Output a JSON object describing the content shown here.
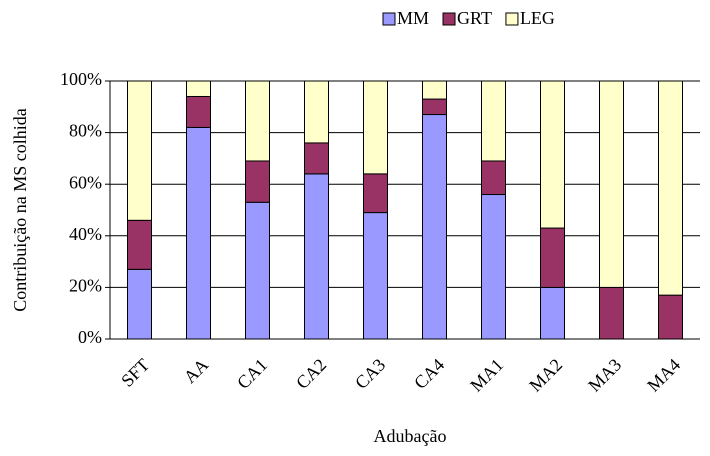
{
  "chart_data": {
    "type": "stacked_bar",
    "xlabel": "Adubação",
    "ylabel": "Contribuição na MS colhida",
    "categories": [
      "SFT",
      "AA",
      "CA1",
      "CA2",
      "CA3",
      "CA4",
      "MA1",
      "MA2",
      "MA3",
      "MA4"
    ],
    "series": [
      {
        "name": "MM",
        "color": "#9999ff",
        "values": [
          27,
          82,
          53,
          64,
          49,
          87,
          56,
          20,
          0,
          0
        ]
      },
      {
        "name": "GRT",
        "color": "#993366",
        "values": [
          19,
          12,
          16,
          12,
          15,
          6,
          13,
          23,
          20,
          17
        ]
      },
      {
        "name": "LEG",
        "color": "#ffffcc",
        "values": [
          54,
          6,
          31,
          24,
          36,
          7,
          31,
          57,
          80,
          83
        ]
      }
    ],
    "ylim": [
      0,
      100
    ],
    "yticks": [
      {
        "value": 0,
        "label": "0%"
      },
      {
        "value": 20,
        "label": "20%"
      },
      {
        "value": 40,
        "label": "40%"
      },
      {
        "value": 60,
        "label": "60%"
      },
      {
        "value": 80,
        "label": "80%"
      },
      {
        "value": 100,
        "label": "100%"
      }
    ],
    "grid": true,
    "legend": "top"
  }
}
